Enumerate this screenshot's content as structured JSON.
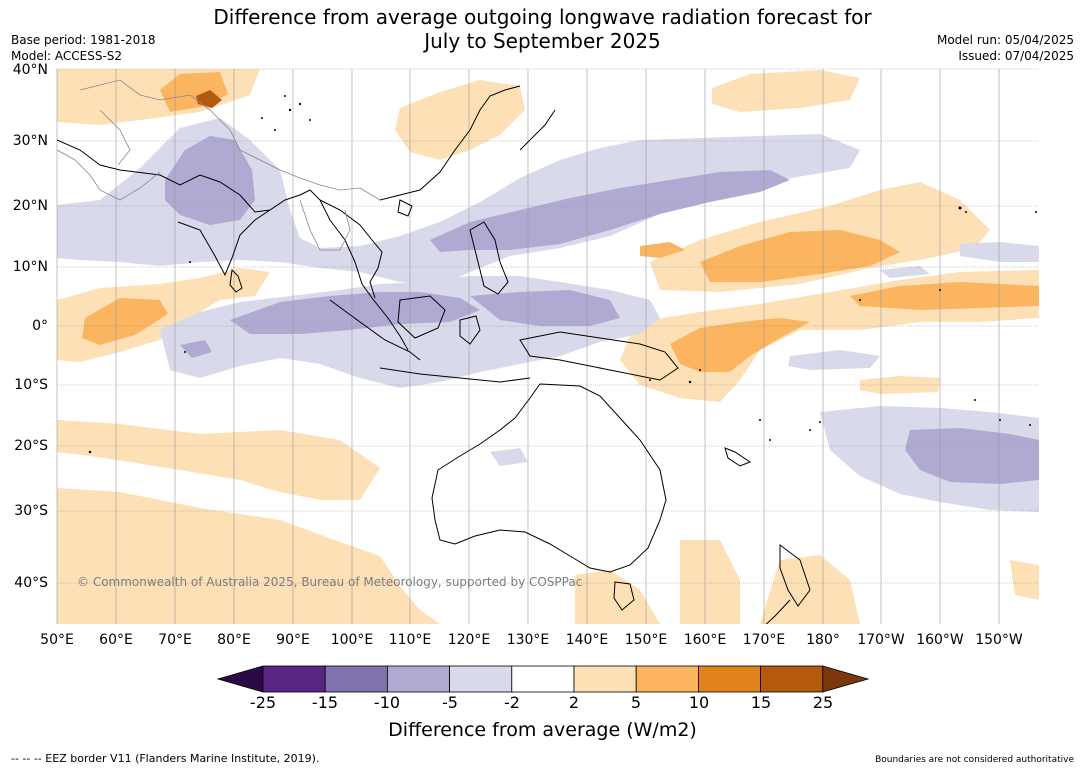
{
  "title_line1": "Difference from average outgoing longwave radiation forecast for",
  "title_line2": "July to September 2025",
  "base_period": "Base period: 1981-2018",
  "model": "Model: ACCESS-S2",
  "model_run": "Model run: 05/04/2025",
  "issued": "Issued: 07/04/2025",
  "latitude_labels": [
    "40°N",
    "30°N",
    "20°N",
    "10°N",
    "0°",
    "10°S",
    "20°S",
    "30°S",
    "40°S"
  ],
  "longitude_labels": [
    "50°E",
    "60°E",
    "70°E",
    "80°E",
    "90°E",
    "100°E",
    "110°E",
    "120°E",
    "130°E",
    "140°E",
    "150°E",
    "160°E",
    "170°E",
    "180°",
    "170°W",
    "160°W",
    "150°W"
  ],
  "copyright": "© Commonwealth of Australia 2025, Bureau of Meteorology, supported by COSPPac",
  "colorbar": {
    "title": "Difference from average (W/m2)",
    "ticks": [
      "-25",
      "-15",
      "-10",
      "-5",
      "-2",
      "2",
      "5",
      "10",
      "15",
      "25"
    ],
    "colors": [
      "#2d0a46",
      "#5a2585",
      "#8171ae",
      "#b0a9d1",
      "#d8d9ea",
      "#ffffff",
      "#fde0b5",
      "#fbb45f",
      "#e1821a",
      "#b45a0e",
      "#7a380b"
    ]
  },
  "footer_left": "--  --  -- EEZ border V11 (Flanders Marine Institute, 2019).",
  "footer_right": "Boundaries are not considered authoritative"
}
